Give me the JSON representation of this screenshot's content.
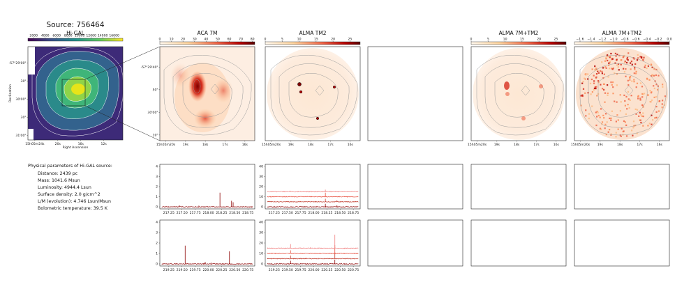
{
  "source_title": "Source: 756464",
  "params": {
    "heading": "Physical parameters of Hi-GAL source:",
    "lines": [
      "Distance: 2439 pc",
      "Mass: 1041.6 Msun",
      "Luminosity: 4944.4 Lsun",
      "Surface density: 2.0 g/cm^2",
      "L/M (evolution): 4.746 Lsun/Msun",
      "Bolometric temperature: 39.5 K"
    ]
  },
  "colors": {
    "frame": "#222222",
    "spectrum": "#8b0000",
    "spectrum_offsets": [
      "#8b0000",
      "#c0392b",
      "#e74c3c",
      "#f08080"
    ],
    "contour_gray": "#9a9a9a",
    "higal_contour": "#ffffff"
  },
  "chart_data": [
    {
      "id": "higal",
      "type": "heatmap",
      "title": "Hi-GAL",
      "colorbar": {
        "ticks": [
          "2000",
          "4000",
          "6000",
          "8000",
          "10000",
          "12000",
          "14000",
          "16000"
        ],
        "range": [
          1000,
          17500
        ],
        "cmap": "viridis"
      },
      "xlabel": "Right Ascension",
      "ylabel": "Declination",
      "xticks": [
        "15h05m24s",
        "20s",
        "16s",
        "12s"
      ],
      "yticks": [
        "-57°29'00\"",
        "30\"",
        "30'00\"",
        "30\"",
        "31'00\""
      ]
    },
    {
      "id": "aca7m",
      "type": "heatmap",
      "title": "ACA 7M",
      "colorbar": {
        "ticks": [
          "0",
          "10",
          "20",
          "30",
          "40",
          "50",
          "60",
          "70",
          "80"
        ],
        "range": [
          0,
          82
        ],
        "cmap": "OrRd"
      },
      "xticks": [
        "15h05m20s",
        "19s",
        "18s",
        "17s",
        "16s"
      ],
      "yticks": [
        "-57°29'40\"",
        "50\"",
        "30'00\"",
        "10\""
      ]
    },
    {
      "id": "almatm2",
      "type": "heatmap",
      "title": "ALMA TM2",
      "colorbar": {
        "ticks": [
          "0",
          "5",
          "10",
          "15",
          "20",
          "25"
        ],
        "range": [
          0,
          28
        ],
        "cmap": "OrRd"
      },
      "xticks": [
        "15h05m20s",
        "19s",
        "18s",
        "17s",
        "16s"
      ]
    },
    {
      "id": "alma7mtm2",
      "type": "heatmap",
      "title": "ALMA 7M+TM2",
      "colorbar": {
        "ticks": [
          "0",
          "5",
          "10",
          "15",
          "20",
          "25"
        ],
        "range": [
          0,
          28
        ],
        "cmap": "OrRd"
      },
      "xticks": [
        "15h05m20s",
        "19s",
        "18s",
        "17s",
        "16s"
      ]
    },
    {
      "id": "alma7mtm2_log",
      "type": "heatmap",
      "title": "ALMA 7M+TM2",
      "colorbar": {
        "ticks": [
          "−1.6",
          "−1.4",
          "−1.2",
          "−1.0",
          "−0.8",
          "−0.6",
          "−0.4",
          "−0.2",
          "0.0"
        ],
        "range": [
          -1.7,
          0.0
        ],
        "cmap": "OrRd"
      },
      "xticks": [
        "15h05m20s",
        "19s",
        "18s",
        "17s",
        "16s"
      ]
    },
    {
      "id": "spec_aca_a",
      "type": "line",
      "xticks": [
        "217.25",
        "217.50",
        "217.75",
        "218.00",
        "218.25",
        "218.50",
        "218.75"
      ],
      "xlim": [
        217.08,
        218.88
      ],
      "yticks": [
        "0",
        "1",
        "2",
        "3",
        "4"
      ],
      "ylim": [
        -0.2,
        4.2
      ],
      "series": [
        {
          "baseline": 0,
          "lines": [
            [
              218.22,
              1.4
            ],
            [
              218.44,
              0.6
            ],
            [
              218.47,
              0.45
            ],
            [
              217.45,
              0.15
            ],
            [
              217.82,
              0.12
            ]
          ]
        }
      ]
    },
    {
      "id": "spec_tm2_a",
      "type": "line",
      "xticks": [
        "217.25",
        "217.50",
        "217.75",
        "218.00",
        "218.25",
        "218.50",
        "218.75"
      ],
      "xlim": [
        217.08,
        218.88
      ],
      "yticks": [
        "0",
        "10",
        "20",
        "30",
        "40"
      ],
      "ylim": [
        -2,
        42
      ],
      "series": [
        {
          "baseline": 0,
          "lines": [
            [
              218.22,
              3.0
            ],
            [
              218.44,
              1.5
            ]
          ]
        },
        {
          "baseline": 5,
          "lines": [
            [
              218.22,
              3.0
            ],
            [
              218.44,
              1.5
            ]
          ]
        },
        {
          "baseline": 10,
          "lines": [
            [
              218.22,
              4.0
            ]
          ]
        },
        {
          "baseline": 15,
          "lines": [
            [
              218.22,
              2.0
            ],
            [
              217.55,
              1.0
            ]
          ]
        }
      ]
    },
    {
      "id": "spec_aca_b",
      "type": "line",
      "xticks": [
        "219.25",
        "219.50",
        "219.75",
        "220.00",
        "220.25",
        "220.50",
        "220.75"
      ],
      "xlim": [
        219.08,
        220.88
      ],
      "yticks": [
        "0",
        "1",
        "2",
        "3",
        "4"
      ],
      "ylim": [
        -0.2,
        4.2
      ],
      "series": [
        {
          "baseline": 0,
          "lines": [
            [
              219.56,
              1.75
            ],
            [
              220.4,
              1.2
            ],
            [
              219.94,
              0.2
            ],
            [
              220.05,
              0.12
            ]
          ]
        }
      ]
    },
    {
      "id": "spec_tm2_b",
      "type": "line",
      "xticks": [
        "219.25",
        "219.50",
        "219.75",
        "220.00",
        "220.25",
        "220.50",
        "220.75"
      ],
      "xlim": [
        219.08,
        220.88
      ],
      "yticks": [
        "0",
        "10",
        "20",
        "30",
        "40"
      ],
      "ylim": [
        -2,
        42
      ],
      "series": [
        {
          "baseline": 0,
          "lines": [
            [
              219.56,
              3.0
            ],
            [
              220.4,
              4.0
            ]
          ]
        },
        {
          "baseline": 5,
          "lines": [
            [
              219.56,
              3.0
            ],
            [
              220.4,
              6.0
            ]
          ]
        },
        {
          "baseline": 10,
          "lines": [
            [
              219.56,
              3.0
            ],
            [
              220.4,
              8.0
            ]
          ]
        },
        {
          "baseline": 15,
          "lines": [
            [
              219.56,
              4.0
            ],
            [
              220.4,
              13.0
            ],
            [
              219.94,
              1.0
            ]
          ]
        }
      ]
    }
  ]
}
